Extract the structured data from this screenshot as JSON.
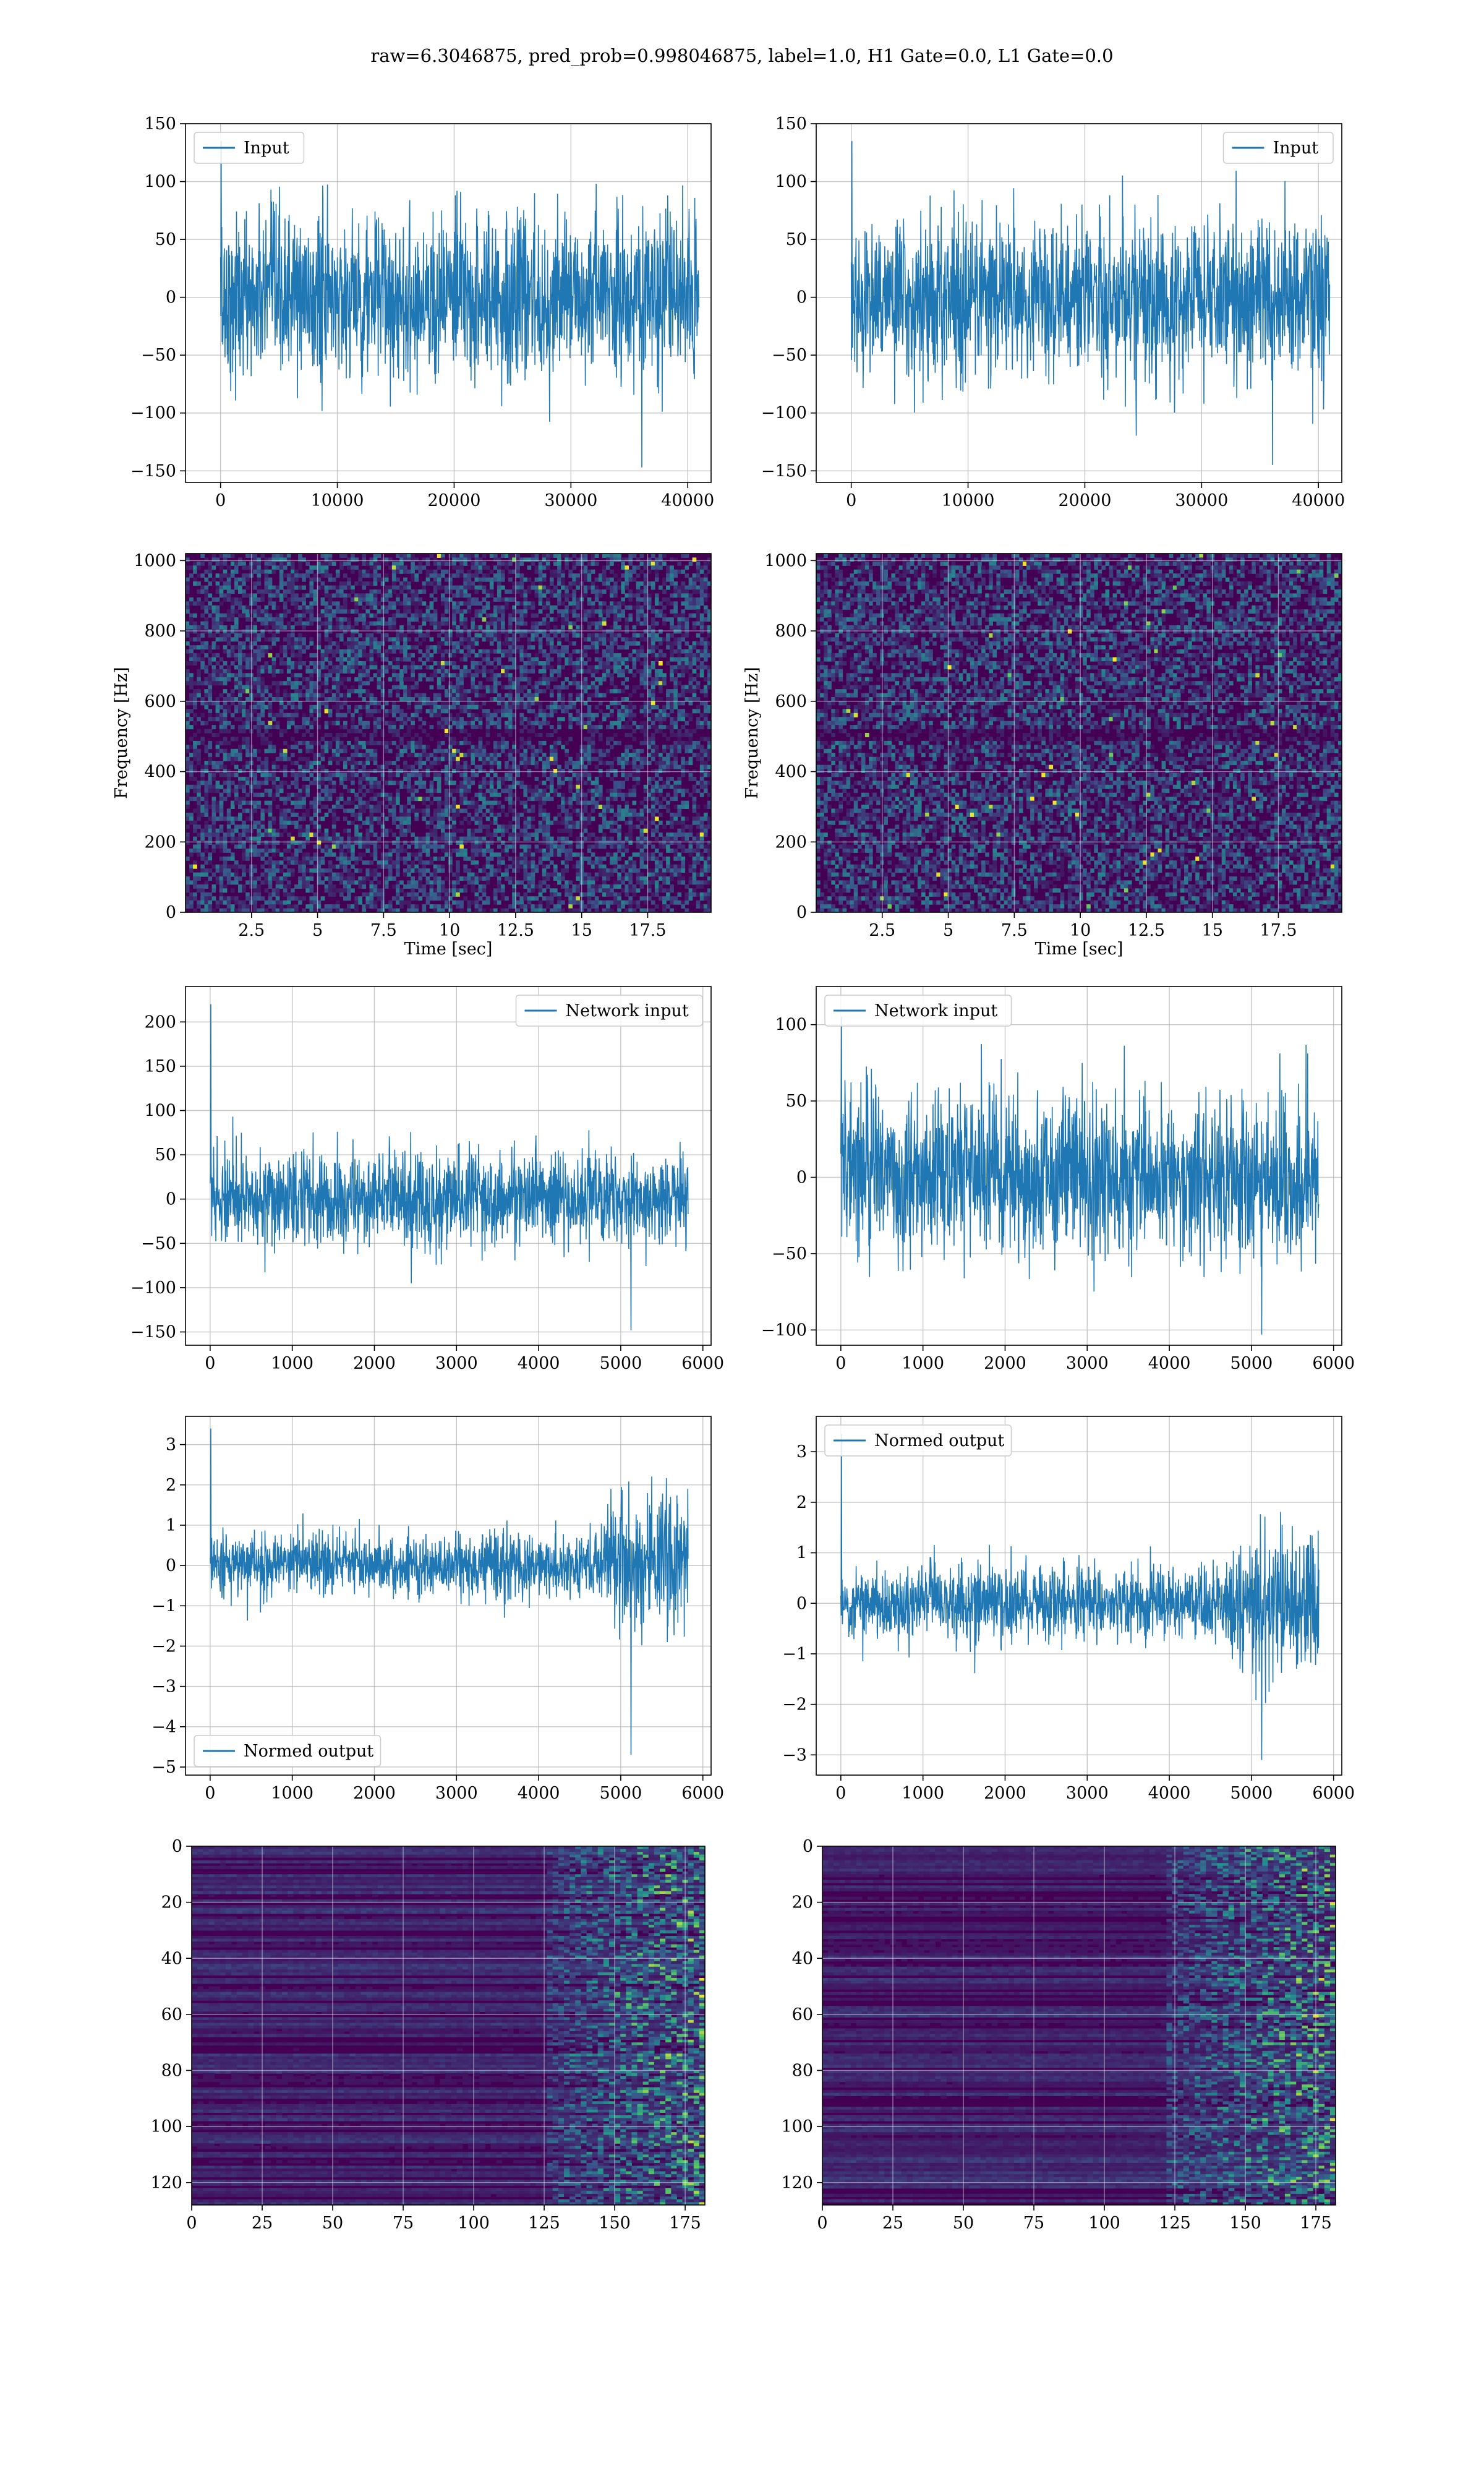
{
  "figure": {
    "suptitle": "raw=6.3046875, pred_prob=0.998046875, label=1.0, H1 Gate=0.0, L1 Gate=0.0"
  },
  "colors": {
    "line": "#1f77b4",
    "grid": "#b0b0b0",
    "viridis_low": "#440154",
    "viridis_mid": "#21918c",
    "viridis_high": "#fde725"
  },
  "chart_data": [
    {
      "id": "row1-left",
      "type": "line",
      "legend": "Input",
      "legend_loc": "upper left",
      "xlim": [
        -3000,
        42000
      ],
      "ylim": [
        -160,
        150
      ],
      "xticks": [
        0,
        10000,
        20000,
        30000,
        40000
      ],
      "yticks": [
        -150,
        -100,
        -50,
        0,
        50,
        100,
        150
      ],
      "x_range": [
        0,
        40960
      ],
      "envelope_upper": 75,
      "envelope_lower": -75,
      "peak_max": 135,
      "peak_min": -147
    },
    {
      "id": "row1-right",
      "type": "line",
      "legend": "Input",
      "legend_loc": "upper right",
      "xlim": [
        -3000,
        42000
      ],
      "ylim": [
        -160,
        150
      ],
      "xticks": [
        0,
        10000,
        20000,
        30000,
        40000
      ],
      "yticks": [
        -150,
        -100,
        -50,
        0,
        50,
        100,
        150
      ],
      "x_range": [
        0,
        40960
      ],
      "envelope_upper": 70,
      "envelope_lower": -70,
      "peak_max": 135,
      "peak_min": -145
    },
    {
      "id": "row2-left",
      "type": "heatmap",
      "xlabel": "Time [sec]",
      "ylabel": "Frequency [Hz]",
      "xlim": [
        0,
        19.9
      ],
      "ylim": [
        0,
        1020
      ],
      "xticks": [
        2.5,
        5.0,
        7.5,
        10.0,
        12.5,
        15.0,
        17.5
      ],
      "yticks": [
        0,
        200,
        400,
        600,
        800,
        1000
      ]
    },
    {
      "id": "row2-right",
      "type": "heatmap",
      "xlabel": "Time [sec]",
      "ylabel": "Frequency [Hz]",
      "xlim": [
        0,
        19.9
      ],
      "ylim": [
        0,
        1020
      ],
      "xticks": [
        2.5,
        5.0,
        7.5,
        10.0,
        12.5,
        15.0,
        17.5
      ],
      "yticks": [
        0,
        200,
        400,
        600,
        800,
        1000
      ]
    },
    {
      "id": "row3-left",
      "type": "line",
      "legend": "Network input",
      "legend_loc": "upper right",
      "xlim": [
        -300,
        6100
      ],
      "ylim": [
        -165,
        240
      ],
      "xticks": [
        0,
        1000,
        2000,
        3000,
        4000,
        5000,
        6000
      ],
      "yticks": [
        -150,
        -100,
        -50,
        0,
        50,
        100,
        150,
        200
      ],
      "x_range": [
        0,
        5820
      ],
      "envelope_upper": 55,
      "envelope_lower": -55,
      "peak_max": 220,
      "peak_min": -148
    },
    {
      "id": "row3-right",
      "type": "line",
      "legend": "Network input",
      "legend_loc": "upper left",
      "xlim": [
        -300,
        6100
      ],
      "ylim": [
        -110,
        125
      ],
      "xticks": [
        0,
        1000,
        2000,
        3000,
        4000,
        5000,
        6000
      ],
      "yticks": [
        -100,
        -50,
        0,
        50,
        100
      ],
      "x_range": [
        0,
        5820
      ],
      "envelope_upper": 55,
      "envelope_lower": -55,
      "peak_max": 105,
      "peak_min": -103
    },
    {
      "id": "row4-left",
      "type": "line",
      "legend": "Normed output",
      "legend_loc": "lower left",
      "xlim": [
        -300,
        6100
      ],
      "ylim": [
        -5.2,
        3.7
      ],
      "xticks": [
        0,
        1000,
        2000,
        3000,
        4000,
        5000,
        6000
      ],
      "yticks": [
        -5,
        -4,
        -3,
        -2,
        -1,
        0,
        1,
        2,
        3
      ],
      "x_range": [
        0,
        5820
      ],
      "envelope_upper": 0.8,
      "envelope_lower": -0.8,
      "burst_start": 4700,
      "burst_amplitude": 2.3,
      "peak_max": 3.4,
      "peak_min": -4.7
    },
    {
      "id": "row4-right",
      "type": "line",
      "legend": "Normed output",
      "legend_loc": "upper left",
      "xlim": [
        -300,
        6100
      ],
      "ylim": [
        -3.4,
        3.7
      ],
      "xticks": [
        0,
        1000,
        2000,
        3000,
        4000,
        5000,
        6000
      ],
      "yticks": [
        -3,
        -2,
        -1,
        0,
        1,
        2,
        3
      ],
      "x_range": [
        0,
        5820
      ],
      "envelope_upper": 0.75,
      "envelope_lower": -0.75,
      "burst_start": 4700,
      "burst_amplitude": 2.0,
      "peak_max": 3.35,
      "peak_min": -3.1
    },
    {
      "id": "row5-left",
      "type": "heatmap",
      "xlim": [
        0,
        182
      ],
      "ylim": [
        128,
        0
      ],
      "xticks": [
        0,
        25,
        50,
        75,
        100,
        125,
        150,
        175
      ],
      "yticks": [
        0,
        20,
        40,
        60,
        80,
        100,
        120
      ],
      "activity_start": 125
    },
    {
      "id": "row5-right",
      "type": "heatmap",
      "xlim": [
        0,
        182
      ],
      "ylim": [
        128,
        0
      ],
      "xticks": [
        0,
        25,
        50,
        75,
        100,
        125,
        150,
        175
      ],
      "yticks": [
        0,
        20,
        40,
        60,
        80,
        100,
        120
      ],
      "activity_start": 120
    }
  ]
}
